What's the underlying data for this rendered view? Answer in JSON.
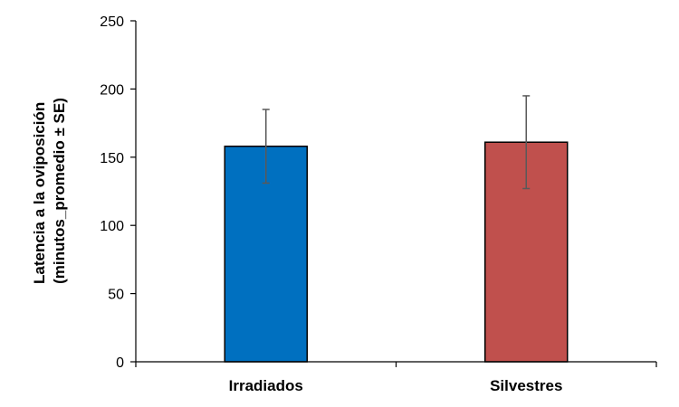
{
  "chart_data": {
    "type": "bar",
    "categories": [
      "Irradiados",
      "Silvestres"
    ],
    "values": [
      158,
      161
    ],
    "errors": [
      27,
      34
    ],
    "ylabel_lines": [
      "Latencia a la oviposición",
      "(minutos_promedio ± SE)"
    ],
    "xlabel": "",
    "ylim": [
      0,
      250
    ],
    "yticks": [
      0,
      50,
      100,
      150,
      200,
      250
    ],
    "grid": false,
    "legend": "none",
    "colors": [
      "#0070C0",
      "#C0504D"
    ],
    "error_bar_color": "#595959",
    "axis_color": "#000000"
  }
}
